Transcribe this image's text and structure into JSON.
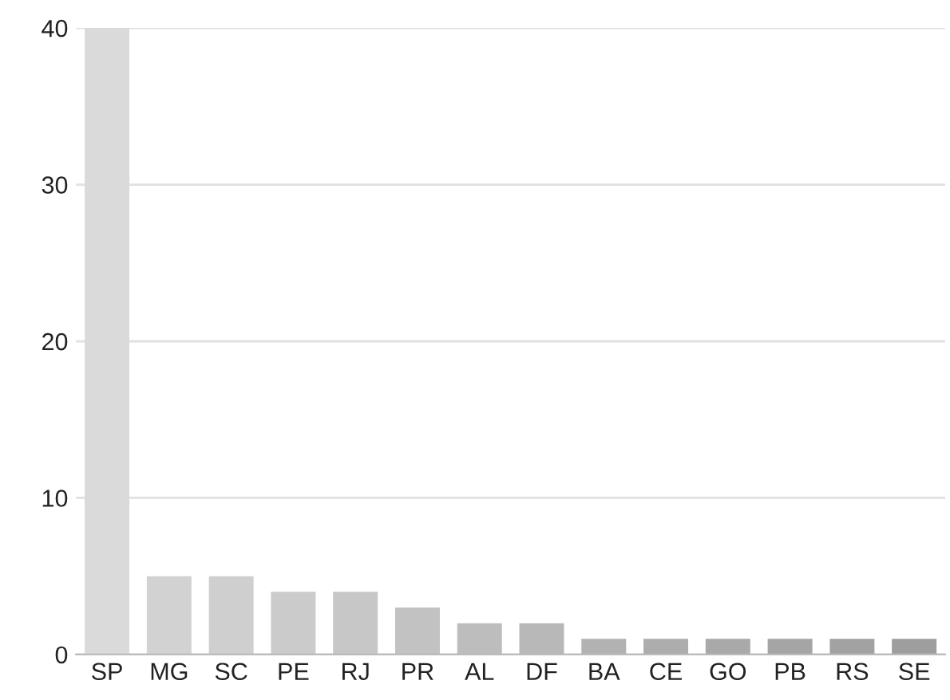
{
  "chart_data": {
    "type": "bar",
    "categories": [
      "SP",
      "MG",
      "SC",
      "PE",
      "RJ",
      "PR",
      "AL",
      "DF",
      "BA",
      "CE",
      "GO",
      "PB",
      "RS",
      "SE"
    ],
    "values": [
      40,
      5,
      5,
      4,
      4,
      3,
      2,
      2,
      1,
      1,
      1,
      1,
      1,
      1
    ],
    "colors": [
      "#dadada",
      "#d2d2d2",
      "#cfcfcf",
      "#cbcbcb",
      "#c7c7c7",
      "#c2c2c2",
      "#bdbdbd",
      "#b8b8b8",
      "#b2b2b2",
      "#adadad",
      "#a9a9a9",
      "#a5a5a5",
      "#a2a2a2",
      "#9e9e9e"
    ],
    "ylim": [
      0,
      40
    ],
    "yticks": [
      0,
      10,
      20,
      30,
      40
    ],
    "grid": "y",
    "legend": false
  }
}
